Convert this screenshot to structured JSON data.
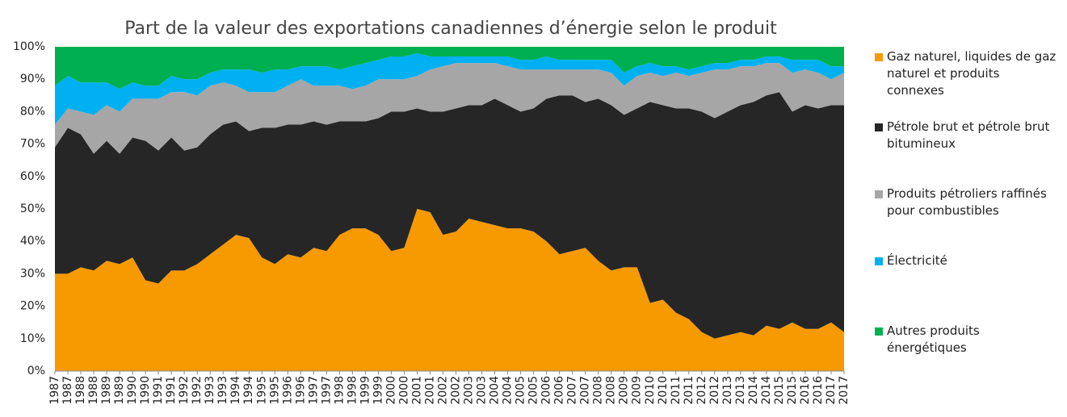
{
  "chart_data": {
    "type": "stacked-area",
    "title": "Part de la valeur des exportations canadiennes d’énergie selon le produit",
    "categories": [
      "1987",
      "1987",
      "1988",
      "1988",
      "1989",
      "1989",
      "1990",
      "1990",
      "1991",
      "1991",
      "1992",
      "1992",
      "1993",
      "1993",
      "1994",
      "1994",
      "1995",
      "1995",
      "1996",
      "1996",
      "1997",
      "1997",
      "1998",
      "1998",
      "1999",
      "1999",
      "2000",
      "2000",
      "2001",
      "2001",
      "2002",
      "2002",
      "2003",
      "2003",
      "2004",
      "2004",
      "2005",
      "2005",
      "2006",
      "2006",
      "2007",
      "2007",
      "2008",
      "2008",
      "2009",
      "2009",
      "2010",
      "2010",
      "2011",
      "2011",
      "2012",
      "2012",
      "2013",
      "2013",
      "2014",
      "2014",
      "2015",
      "2015",
      "2016",
      "2016",
      "2017",
      "2017"
    ],
    "series": [
      {
        "name": "Gaz naturel, liquides de gaz naturel et produits connexes",
        "color": "#f79a00",
        "values": [
          30,
          30,
          32,
          31,
          34,
          33,
          35,
          28,
          27,
          31,
          31,
          33,
          36,
          39,
          42,
          41,
          35,
          33,
          36,
          35,
          38,
          37,
          42,
          44,
          44,
          42,
          37,
          38,
          50,
          49,
          42,
          43,
          47,
          46,
          45,
          44,
          44,
          43,
          40,
          36,
          37,
          38,
          34,
          31,
          32,
          32,
          21,
          22,
          18,
          16,
          12,
          10,
          11,
          12,
          11,
          14,
          13,
          15,
          13,
          13,
          15,
          12
        ]
      },
      {
        "name": "Pétrole brut et pétrole brut bitumineux",
        "color": "#262626",
        "values": [
          39,
          45,
          41,
          36,
          37,
          34,
          37,
          43,
          41,
          41,
          37,
          36,
          37,
          37,
          35,
          33,
          40,
          42,
          40,
          41,
          39,
          39,
          35,
          33,
          33,
          36,
          43,
          42,
          31,
          31,
          38,
          38,
          35,
          36,
          39,
          38,
          36,
          38,
          44,
          49,
          48,
          45,
          50,
          51,
          47,
          49,
          62,
          60,
          63,
          65,
          68,
          68,
          69,
          70,
          72,
          71,
          73,
          65,
          69,
          68,
          67,
          70
        ]
      },
      {
        "name": "Produits pétroliers raffinés pour combustibles",
        "color": "#a6a6a6",
        "values": [
          7,
          6,
          7,
          12,
          11,
          13,
          12,
          13,
          16,
          14,
          18,
          16,
          15,
          13,
          11,
          12,
          11,
          11,
          12,
          14,
          11,
          12,
          11,
          10,
          11,
          12,
          10,
          10,
          10,
          13,
          14,
          14,
          13,
          13,
          11,
          12,
          13,
          12,
          9,
          8,
          8,
          10,
          9,
          10,
          9,
          10,
          9,
          9,
          11,
          10,
          12,
          15,
          13,
          12,
          11,
          10,
          9,
          12,
          11,
          11,
          8,
          10
        ]
      },
      {
        "name": "Électricité",
        "color": "#00b0f0",
        "values": [
          12,
          10,
          9,
          10,
          7,
          7,
          5,
          4,
          4,
          5,
          4,
          5,
          4,
          4,
          5,
          7,
          6,
          7,
          5,
          4,
          6,
          6,
          5,
          7,
          7,
          6,
          7,
          7,
          7,
          4,
          3,
          2,
          2,
          2,
          2,
          3,
          3,
          3,
          4,
          3,
          3,
          3,
          3,
          4,
          4,
          3,
          3,
          3,
          2,
          2,
          2,
          2,
          2,
          2,
          2,
          2,
          2,
          4,
          3,
          4,
          4,
          2
        ]
      },
      {
        "name": "Autres produits énergétiques",
        "color": "#00b050",
        "values": [
          12,
          9,
          11,
          11,
          11,
          13,
          11,
          12,
          12,
          9,
          10,
          10,
          8,
          7,
          7,
          7,
          8,
          7,
          7,
          6,
          6,
          6,
          7,
          6,
          5,
          4,
          3,
          3,
          2,
          3,
          3,
          3,
          3,
          3,
          3,
          3,
          4,
          4,
          3,
          4,
          4,
          4,
          4,
          4,
          8,
          6,
          5,
          6,
          6,
          7,
          6,
          5,
          5,
          4,
          4,
          3,
          3,
          4,
          4,
          4,
          6,
          6
        ]
      }
    ],
    "ylim": [
      0,
      100
    ],
    "yticks": [
      {
        "value": 0,
        "label": "0%"
      },
      {
        "value": 10,
        "label": "10%"
      },
      {
        "value": 20,
        "label": "20%"
      },
      {
        "value": 30,
        "label": "30%"
      },
      {
        "value": 40,
        "label": "40%"
      },
      {
        "value": 50,
        "label": "50%"
      },
      {
        "value": 60,
        "label": "60%"
      },
      {
        "value": 70,
        "label": "70%"
      },
      {
        "value": 80,
        "label": "80%"
      },
      {
        "value": 90,
        "label": "90%"
      },
      {
        "value": 100,
        "label": "100%"
      }
    ],
    "grid": false,
    "legend": "right"
  }
}
